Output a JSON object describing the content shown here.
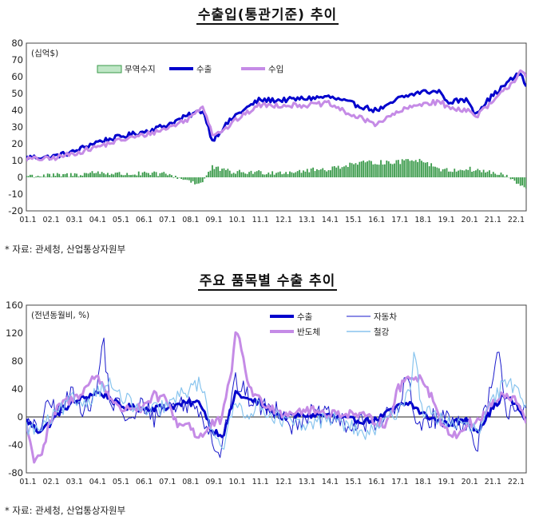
{
  "page": {
    "title1": "수출입(통관기준) 추이",
    "source1": "*  자료: 관세청, 산업통상자원부",
    "title2": "주요 품목별 수출 추이",
    "source2": "*  자료: 관세청, 산업통상자원부"
  },
  "chart_data": [
    {
      "type": "line",
      "title": "수출입(통관기준) 추이",
      "unit_label": "(십억$)",
      "ylim": [
        -20,
        80
      ],
      "yticks": [
        -20,
        -10,
        0,
        10,
        20,
        30,
        40,
        50,
        60,
        70,
        80
      ],
      "x_tick_labels": [
        "01.1",
        "02.1",
        "03.1",
        "04.1",
        "05.1",
        "06.1",
        "07.1",
        "08.1",
        "09.1",
        "10.1",
        "11.1",
        "12.1",
        "13.1",
        "14.1",
        "15.1",
        "16.1",
        "17.1",
        "18.1",
        "19.1",
        "20.1",
        "21.1",
        "22.1"
      ],
      "x_years": [
        2001,
        2022.5
      ],
      "legend": [
        {
          "name": "무역수지",
          "color": "#3a9a4a",
          "style": "bar"
        },
        {
          "name": "수출",
          "color": "#0000cc",
          "style": "line"
        },
        {
          "name": "수입",
          "color": "#c58be6",
          "style": "line"
        }
      ],
      "series": [
        {
          "name": "수출",
          "color": "#0000cc",
          "x": [
            2001.0,
            2002.0,
            2003.0,
            2004.0,
            2005.0,
            2006.0,
            2007.0,
            2008.0,
            2008.6,
            2009.0,
            2009.5,
            2010.0,
            2011.0,
            2012.0,
            2013.0,
            2014.0,
            2015.0,
            2016.0,
            2016.5,
            2017.0,
            2018.0,
            2018.9,
            2019.0,
            2020.0,
            2020.3,
            2021.0,
            2022.0,
            2022.3,
            2022.5
          ],
          "y": [
            12,
            12,
            15,
            21,
            24,
            27,
            31,
            37,
            40,
            22,
            30,
            37,
            46,
            46,
            47,
            48,
            44,
            40,
            42,
            47,
            51,
            51,
            45,
            46,
            38,
            48,
            60,
            62,
            53
          ]
        },
        {
          "name": "수입",
          "color": "#c58be6",
          "x": [
            2001.0,
            2002.0,
            2003.0,
            2004.0,
            2005.0,
            2006.0,
            2007.0,
            2008.0,
            2008.6,
            2009.0,
            2009.5,
            2010.0,
            2011.0,
            2012.0,
            2013.0,
            2014.0,
            2015.0,
            2016.0,
            2016.5,
            2017.0,
            2018.0,
            2018.9,
            2019.0,
            2020.0,
            2020.3,
            2021.0,
            2022.0,
            2022.3,
            2022.5
          ],
          "y": [
            11,
            11,
            14,
            18,
            22,
            25,
            29,
            35,
            43,
            26,
            28,
            34,
            43,
            43,
            43,
            44,
            37,
            32,
            35,
            39,
            44,
            45,
            42,
            40,
            36,
            44,
            58,
            65,
            60
          ]
        },
        {
          "name": "무역수지",
          "color": "#3a9a4a",
          "x": [
            2001.0,
            2002.0,
            2003.0,
            2004.0,
            2005.0,
            2006.0,
            2007.0,
            2008.0,
            2008.5,
            2009.0,
            2009.5,
            2010.0,
            2011.0,
            2012.0,
            2013.0,
            2014.0,
            2015.0,
            2016.0,
            2017.0,
            2017.5,
            2018.0,
            2019.0,
            2020.0,
            2021.0,
            2021.8,
            2022.0,
            2022.3,
            2022.5
          ],
          "y": [
            1,
            1,
            1.5,
            3,
            2,
            2,
            2,
            -2,
            -4,
            6,
            4,
            3,
            3,
            3,
            4,
            5,
            8,
            9,
            9,
            11,
            10,
            4,
            5,
            3,
            0,
            -3,
            -5,
            -8
          ]
        }
      ]
    },
    {
      "type": "line",
      "title": "주요 품목별 수출 추이",
      "unit_label": "(전년동월비, %)",
      "ylim": [
        -80,
        160
      ],
      "yticks": [
        -80,
        -40,
        0,
        40,
        80,
        120,
        160
      ],
      "x_tick_labels": [
        "01.1",
        "02.1",
        "03.1",
        "04.1",
        "05.1",
        "06.1",
        "07.1",
        "08.1",
        "09.1",
        "10.1",
        "11.1",
        "12.1",
        "13.1",
        "14.1",
        "15.1",
        "16.1",
        "17.1",
        "18.1",
        "19.1",
        "20.1",
        "21.1",
        "22.1"
      ],
      "x_years": [
        2001,
        2022.5
      ],
      "legend": [
        {
          "name": "수출",
          "color": "#0000cc",
          "width": 4
        },
        {
          "name": "자동차",
          "color": "#1a1acc",
          "width": 1
        },
        {
          "name": "반도체",
          "color": "#c58be6",
          "width": 4
        },
        {
          "name": "철강",
          "color": "#88c4ee",
          "width": 1.5
        }
      ],
      "series": [
        {
          "name": "수출",
          "color": "#0000cc",
          "width": 3,
          "x": [
            2001.0,
            2001.5,
            2002.0,
            2002.5,
            2003.0,
            2004.0,
            2004.5,
            2005.0,
            2006.0,
            2007.0,
            2008.0,
            2008.5,
            2009.0,
            2009.5,
            2010.0,
            2010.5,
            2011.0,
            2012.0,
            2013.0,
            2014.0,
            2015.0,
            2016.0,
            2017.0,
            2017.5,
            2018.0,
            2019.0,
            2020.0,
            2020.4,
            2021.0,
            2021.5,
            2022.0,
            2022.5
          ],
          "y": [
            -5,
            -20,
            -10,
            10,
            20,
            35,
            30,
            15,
            12,
            14,
            20,
            20,
            -20,
            -25,
            35,
            25,
            20,
            0,
            3,
            2,
            -5,
            -5,
            15,
            20,
            5,
            -10,
            -5,
            -20,
            10,
            30,
            20,
            -5
          ]
        },
        {
          "name": "자동차",
          "color": "#1a1acc",
          "width": 1,
          "x": [
            2001.0,
            2001.5,
            2002.0,
            2002.5,
            2003.0,
            2003.5,
            2004.0,
            2004.3,
            2004.6,
            2005.0,
            2005.5,
            2006.0,
            2006.5,
            2007.0,
            2008.0,
            2008.5,
            2009.0,
            2009.3,
            2009.6,
            2010.0,
            2010.5,
            2011.0,
            2012.0,
            2012.5,
            2013.0,
            2014.0,
            2015.0,
            2016.0,
            2017.0,
            2017.4,
            2017.7,
            2018.0,
            2019.0,
            2020.0,
            2020.3,
            2020.6,
            2021.0,
            2021.3,
            2021.6,
            2022.0,
            2022.5
          ],
          "y": [
            -10,
            -20,
            20,
            5,
            40,
            10,
            30,
            115,
            20,
            15,
            -10,
            20,
            0,
            15,
            20,
            10,
            -30,
            -55,
            -10,
            50,
            30,
            15,
            10,
            -15,
            5,
            0,
            -15,
            -5,
            10,
            60,
            -10,
            -5,
            0,
            -10,
            -50,
            -10,
            40,
            95,
            5,
            20,
            15
          ]
        },
        {
          "name": "반도체",
          "color": "#c58be6",
          "width": 3,
          "x": [
            2001.0,
            2001.3,
            2001.7,
            2002.0,
            2002.5,
            2003.0,
            2003.5,
            2004.0,
            2004.5,
            2005.0,
            2005.5,
            2006.0,
            2006.5,
            2007.0,
            2007.5,
            2008.0,
            2008.4,
            2008.8,
            2009.0,
            2009.4,
            2009.8,
            2010.0,
            2010.3,
            2010.6,
            2011.0,
            2011.5,
            2012.0,
            2013.0,
            2014.0,
            2015.0,
            2016.0,
            2016.5,
            2017.0,
            2017.5,
            2018.0,
            2018.5,
            2019.0,
            2019.5,
            2020.0,
            2020.5,
            2021.0,
            2021.5,
            2022.0,
            2022.3,
            2022.5
          ],
          "y": [
            -10,
            -60,
            -50,
            -10,
            20,
            25,
            40,
            60,
            35,
            10,
            15,
            10,
            30,
            25,
            -10,
            -10,
            -30,
            -20,
            -10,
            -5,
            60,
            125,
            90,
            40,
            25,
            15,
            5,
            10,
            5,
            5,
            -5,
            -10,
            40,
            60,
            55,
            25,
            -20,
            -25,
            -10,
            -5,
            20,
            30,
            25,
            10,
            -15
          ]
        },
        {
          "name": "철강",
          "color": "#88c4ee",
          "width": 1.2,
          "x": [
            2001.0,
            2001.5,
            2002.0,
            2002.5,
            2003.0,
            2003.5,
            2004.0,
            2004.5,
            2005.0,
            2005.5,
            2006.0,
            2007.0,
            2008.0,
            2008.5,
            2009.0,
            2009.5,
            2010.0,
            2010.5,
            2011.0,
            2012.0,
            2013.0,
            2014.0,
            2015.0,
            2015.5,
            2016.0,
            2017.0,
            2017.5,
            2017.7,
            2018.0,
            2019.0,
            2019.5,
            2020.0,
            2020.5,
            2021.0,
            2021.5,
            2022.0,
            2022.5
          ],
          "y": [
            -15,
            -20,
            -5,
            10,
            25,
            20,
            35,
            50,
            30,
            20,
            5,
            15,
            40,
            50,
            -20,
            -40,
            20,
            5,
            15,
            -5,
            -15,
            0,
            -15,
            -25,
            -20,
            10,
            40,
            100,
            10,
            -5,
            -10,
            -15,
            -20,
            20,
            45,
            45,
            20
          ]
        }
      ]
    }
  ]
}
